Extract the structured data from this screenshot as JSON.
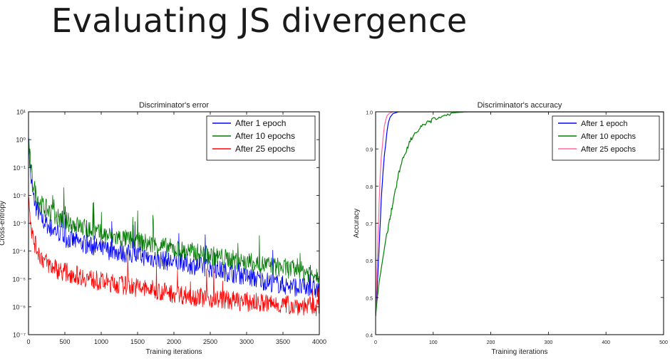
{
  "slide": {
    "title": "Evaluating JS divergence"
  },
  "chart_data": [
    {
      "type": "line",
      "title": "Discriminator's error",
      "xlabel": "Training iterations",
      "ylabel": "Cross-entropy",
      "yscale": "log",
      "xlim": [
        0,
        4000
      ],
      "ylim": [
        1e-07,
        10
      ],
      "xticks": [
        0,
        500,
        1000,
        1500,
        2000,
        2500,
        3000,
        3500,
        4000
      ],
      "yticks": [
        {
          "value": 10,
          "label": "10¹"
        },
        {
          "value": 1,
          "label": "10⁰"
        },
        {
          "value": 0.1,
          "label": "10⁻¹"
        },
        {
          "value": 0.01,
          "label": "10⁻²"
        },
        {
          "value": 0.001,
          "label": "10⁻³"
        },
        {
          "value": 0.0001,
          "label": "10⁻⁴"
        },
        {
          "value": 1e-05,
          "label": "10⁻⁵"
        },
        {
          "value": 1e-06,
          "label": "10⁻⁶"
        },
        {
          "value": 1e-07,
          "label": "10⁻⁷"
        }
      ],
      "grid": false,
      "legend_position": "top-right",
      "series": [
        {
          "name": "After 1 epoch",
          "color": "#0000ff",
          "x": [
            0,
            30,
            60,
            100,
            150,
            200,
            300,
            400,
            500,
            750,
            1000,
            1500,
            2000,
            2500,
            3000,
            3500,
            4000
          ],
          "y": [
            1,
            0.05,
            0.01,
            0.004,
            0.002,
            0.0012,
            0.0007,
            0.0005,
            0.0003,
            0.00018,
            0.00012,
            7e-05,
            4e-05,
            2.5e-05,
            1.2e-05,
            6e-06,
            4e-06
          ]
        },
        {
          "name": "After 10 epochs",
          "color": "#007a00",
          "x": [
            0,
            30,
            60,
            100,
            150,
            200,
            300,
            400,
            500,
            750,
            1000,
            1500,
            2000,
            2500,
            3000,
            3500,
            4000
          ],
          "y": [
            1,
            0.1,
            0.03,
            0.012,
            0.006,
            0.004,
            0.0025,
            0.0015,
            0.0012,
            0.0007,
            0.0004,
            0.00022,
            0.00012,
            7e-05,
            4e-05,
            2.5e-05,
            1.5e-05
          ]
        },
        {
          "name": "After 25 epochs",
          "color": "#ff0000",
          "x": [
            0,
            30,
            60,
            100,
            150,
            200,
            300,
            400,
            500,
            750,
            1000,
            1500,
            2000,
            2500,
            3000,
            3500,
            4000
          ],
          "y": [
            0.02,
            0.001,
            0.0003,
            0.00015,
            8e-05,
            5e-05,
            3e-05,
            2.2e-05,
            1.8e-05,
            1.2e-05,
            8e-06,
            5e-06,
            3e-06,
            2e-06,
            1.5e-06,
            1.2e-06,
            1e-06
          ]
        }
      ]
    },
    {
      "type": "line",
      "title": "Discriminator's accuracy",
      "xlabel": "Training iterations",
      "ylabel": "Accuracy",
      "xlim": [
        0,
        500
      ],
      "ylim": [
        0.4,
        1.0
      ],
      "xticks": [
        0,
        100,
        200,
        300,
        400,
        500
      ],
      "yticks": [
        {
          "value": 0.4,
          "label": "0.4"
        },
        {
          "value": 0.5,
          "label": "0.5"
        },
        {
          "value": 0.6,
          "label": "0.6"
        },
        {
          "value": 0.7,
          "label": "0.7"
        },
        {
          "value": 0.8,
          "label": "0.8"
        },
        {
          "value": 0.9,
          "label": "0.9"
        },
        {
          "value": 1.0,
          "label": "1.0"
        }
      ],
      "grid": false,
      "legend_position": "top-right",
      "series": [
        {
          "name": "After 1 epoch",
          "color": "#0000ff",
          "x": [
            0,
            2,
            5,
            8,
            10,
            13,
            15,
            18,
            20,
            22,
            25,
            30,
            40,
            500
          ],
          "y": [
            0.45,
            0.5,
            0.6,
            0.7,
            0.77,
            0.84,
            0.88,
            0.92,
            0.95,
            0.97,
            0.985,
            0.995,
            1.0,
            1.0
          ]
        },
        {
          "name": "After 10 epochs",
          "color": "#008000",
          "x": [
            0,
            3,
            6,
            10,
            15,
            20,
            25,
            30,
            35,
            40,
            45,
            50,
            55,
            60,
            70,
            80,
            90,
            100,
            110,
            120,
            140,
            160,
            500
          ],
          "y": [
            0.45,
            0.5,
            0.54,
            0.58,
            0.63,
            0.68,
            0.72,
            0.76,
            0.8,
            0.84,
            0.87,
            0.89,
            0.91,
            0.93,
            0.95,
            0.965,
            0.975,
            0.985,
            0.99,
            0.995,
            0.998,
            1.0,
            1.0
          ]
        },
        {
          "name": "After 25 epochs",
          "color": "#ff6699",
          "x": [
            0,
            2,
            4,
            6,
            8,
            10,
            13,
            15,
            18,
            20,
            25,
            30,
            500
          ],
          "y": [
            0.45,
            0.55,
            0.66,
            0.75,
            0.83,
            0.88,
            0.93,
            0.96,
            0.98,
            0.99,
            0.997,
            1.0,
            1.0
          ]
        }
      ]
    }
  ]
}
